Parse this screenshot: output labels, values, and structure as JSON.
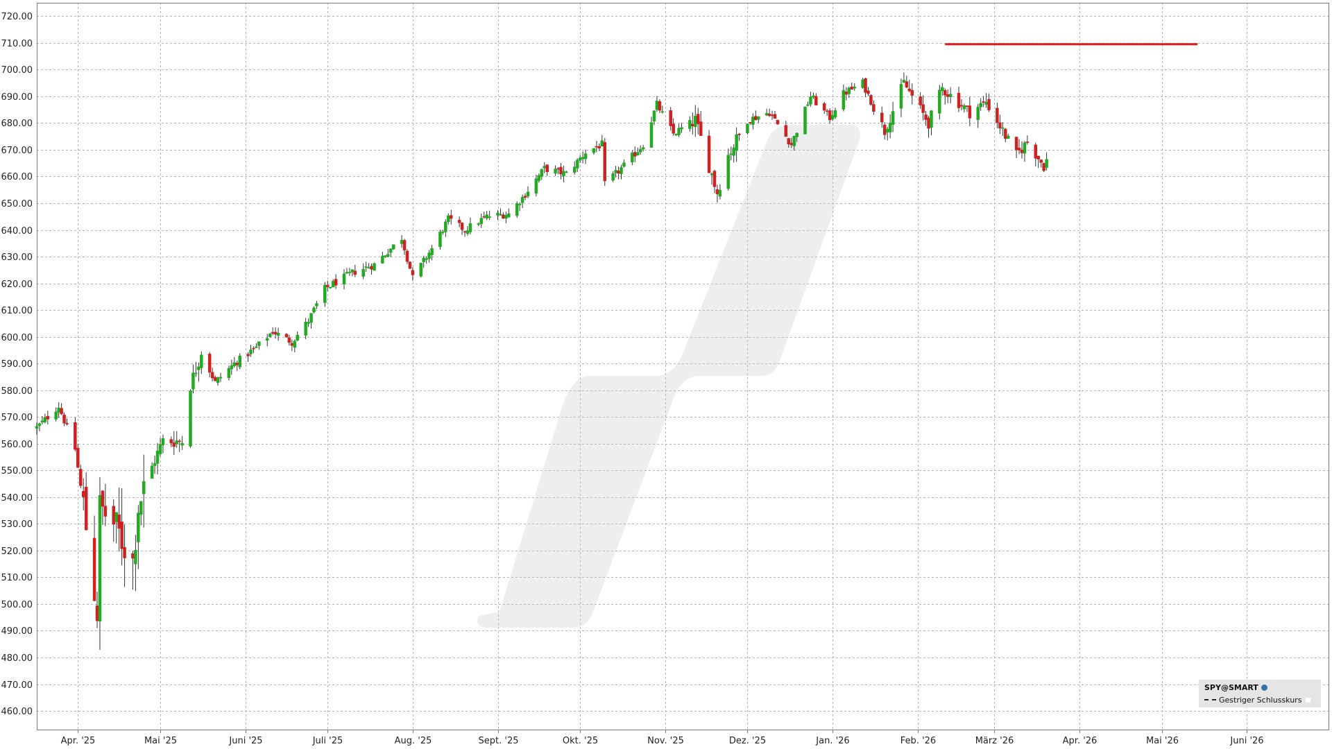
{
  "colors": {
    "up": "#22aa22",
    "down": "#cc2222",
    "grid": "#b5b5b5",
    "axis": "#777777",
    "level_line": "#e0191c",
    "watermark": "#eeeeee"
  },
  "legend": {
    "symbol": "SPY@SMART",
    "entry": "Gestriger Schlusskurs",
    "globe_icon": "globe-icon"
  },
  "chart_data": {
    "type": "candlestick",
    "title": "",
    "xlabel": "",
    "ylabel": "",
    "ylim": [
      453,
      725
    ],
    "y_ticks": [
      "460.00",
      "470.00",
      "480.00",
      "490.00",
      "500.00",
      "510.00",
      "520.00",
      "530.00",
      "540.00",
      "550.00",
      "560.00",
      "570.00",
      "580.00",
      "590.00",
      "600.00",
      "610.00",
      "620.00",
      "630.00",
      "640.00",
      "650.00",
      "660.00",
      "670.00",
      "680.00",
      "690.00",
      "700.00",
      "710.00",
      "720.00"
    ],
    "x_range": [
      "2025-03-17",
      "2026-07-01"
    ],
    "x_ticks": [
      {
        "label": "Apr. '25",
        "date": "2025-04-01"
      },
      {
        "label": "Mai '25",
        "date": "2025-05-01"
      },
      {
        "label": "Juni '25",
        "date": "2025-06-01"
      },
      {
        "label": "Juli '25",
        "date": "2025-07-01"
      },
      {
        "label": "Aug. '25",
        "date": "2025-08-01"
      },
      {
        "label": "Sept. '25",
        "date": "2025-09-01"
      },
      {
        "label": "Okt. '25",
        "date": "2025-10-01"
      },
      {
        "label": "Nov. '25",
        "date": "2025-11-01"
      },
      {
        "label": "Dez. '25",
        "date": "2025-12-01"
      },
      {
        "label": "Jan. '26",
        "date": "2026-01-01"
      },
      {
        "label": "Feb. '26",
        "date": "2026-02-01"
      },
      {
        "label": "März '26",
        "date": "2026-03-01"
      },
      {
        "label": "Apr. '26",
        "date": "2026-04-01"
      },
      {
        "label": "Mai '26",
        "date": "2026-05-01"
      },
      {
        "label": "Juni '26",
        "date": "2026-06-01"
      }
    ],
    "grid": true,
    "legend_position": "bottom-right",
    "reference_line": {
      "name": "Gestriger Schlusskurs",
      "value": 709.5,
      "from": "2026-02-11",
      "to": "2026-05-14"
    },
    "anchors": [
      [
        "2025-03-17",
        566
      ],
      [
        "2025-03-25",
        574
      ],
      [
        "2025-03-31",
        558
      ],
      [
        "2025-04-03",
        537
      ],
      [
        "2025-04-08",
        497
      ],
      [
        "2025-04-09",
        536
      ],
      [
        "2025-04-14",
        530
      ],
      [
        "2025-04-21",
        516
      ],
      [
        "2025-04-23",
        537
      ],
      [
        "2025-04-29",
        554
      ],
      [
        "2025-05-02",
        561
      ],
      [
        "2025-05-09",
        561
      ],
      [
        "2025-05-12",
        582
      ],
      [
        "2025-05-16",
        594
      ],
      [
        "2025-05-21",
        583
      ],
      [
        "2025-05-28",
        590
      ],
      [
        "2025-06-05",
        596
      ],
      [
        "2025-06-11",
        602
      ],
      [
        "2025-06-18",
        598
      ],
      [
        "2025-06-24",
        606
      ],
      [
        "2025-06-30",
        618
      ],
      [
        "2025-07-10",
        624
      ],
      [
        "2025-07-18",
        627
      ],
      [
        "2025-07-28",
        637
      ],
      [
        "2025-08-01",
        622
      ],
      [
        "2025-08-08",
        633
      ],
      [
        "2025-08-14",
        644
      ],
      [
        "2025-08-20",
        640
      ],
      [
        "2025-08-28",
        645
      ],
      [
        "2025-09-05",
        646
      ],
      [
        "2025-09-10",
        652
      ],
      [
        "2025-09-18",
        663
      ],
      [
        "2025-09-26",
        661
      ],
      [
        "2025-10-03",
        669
      ],
      [
        "2025-10-09",
        672
      ],
      [
        "2025-10-10",
        657
      ],
      [
        "2025-10-17",
        664
      ],
      [
        "2025-10-24",
        672
      ],
      [
        "2025-10-29",
        687
      ],
      [
        "2025-11-04",
        676
      ],
      [
        "2025-11-12",
        681
      ],
      [
        "2025-11-20",
        654
      ],
      [
        "2025-11-24",
        668
      ],
      [
        "2025-12-01",
        681
      ],
      [
        "2025-12-09",
        684
      ],
      [
        "2025-12-17",
        672
      ],
      [
        "2025-12-24",
        690
      ],
      [
        "2025-12-31",
        682
      ],
      [
        "2026-01-05",
        691
      ],
      [
        "2026-01-12",
        695
      ],
      [
        "2026-01-20",
        677
      ],
      [
        "2026-01-27",
        695
      ],
      [
        "2026-02-05",
        680
      ],
      [
        "2026-02-10",
        693
      ],
      [
        "2026-02-20",
        684
      ],
      [
        "2026-02-26",
        688
      ],
      [
        "2026-03-04",
        677
      ],
      [
        "2026-03-09",
        668
      ],
      [
        "2026-03-13",
        673
      ],
      [
        "2026-03-19",
        664
      ],
      [
        "2026-03-20",
        666
      ]
    ]
  }
}
